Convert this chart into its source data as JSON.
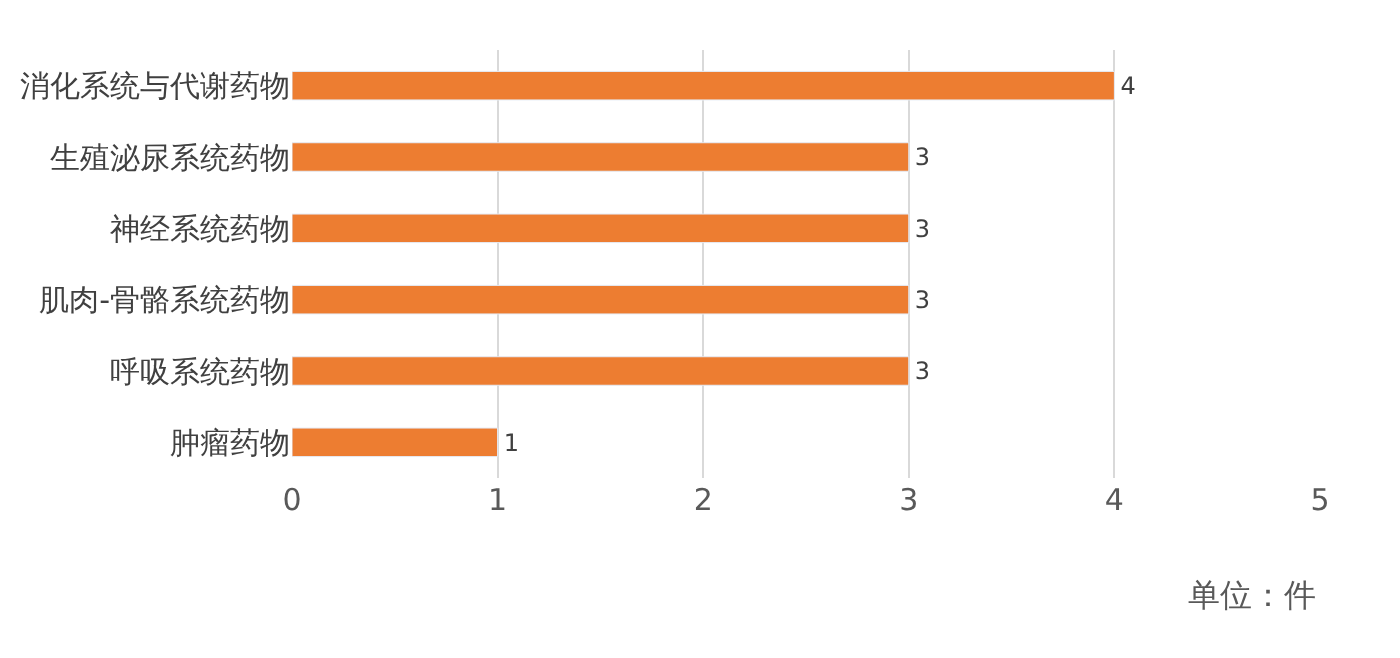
{
  "chart_data": {
    "type": "bar",
    "orientation": "horizontal",
    "categories": [
      "消化系统与代谢药物",
      "生殖泌尿系统药物",
      "神经系统药物",
      "肌肉-骨骼系统药物",
      "呼吸系统药物",
      "肿瘤药物"
    ],
    "values": [
      4,
      3,
      3,
      3,
      3,
      1
    ],
    "color": "#ed7d31",
    "xlim": [
      0,
      5
    ],
    "xticks": [
      0,
      1,
      2,
      3,
      4,
      5
    ],
    "grid": "x",
    "data_labels": true,
    "legend": false,
    "annotations": [
      "单位：件"
    ]
  }
}
